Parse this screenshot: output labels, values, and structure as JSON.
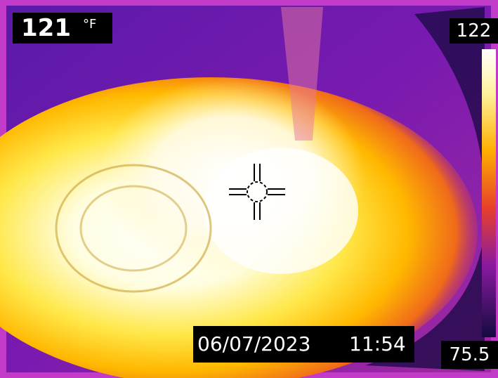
{
  "spot": {
    "temperature": "121",
    "unit": "°F"
  },
  "scale": {
    "max": "122",
    "min": "75.5"
  },
  "timestamp": {
    "date": "06/07/2023",
    "time": "11:54"
  }
}
